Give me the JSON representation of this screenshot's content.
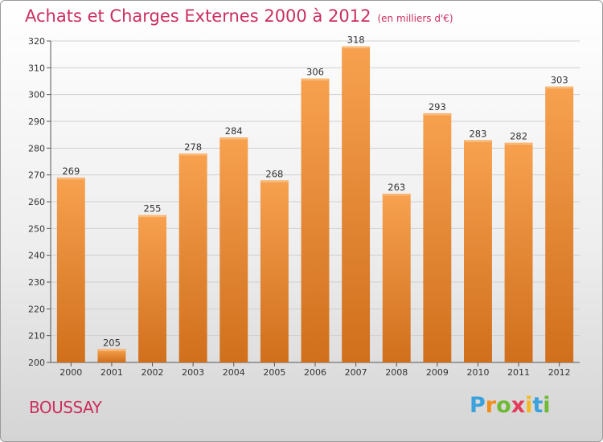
{
  "header": {
    "title": "Achats et Charges Externes 2000 à 2012",
    "subtitle": "(en milliers d'€)"
  },
  "footer": {
    "commune": "BOUSSAY",
    "logo_letters": [
      "P",
      "r",
      "o",
      "x",
      "i",
      "t",
      "i"
    ]
  },
  "colors": {
    "bar_top": "#f7a14f",
    "bar_bottom": "#d06f1c",
    "title": "#cc2e5e",
    "grid": "#cfcfcf"
  },
  "chart_data": {
    "type": "bar",
    "title": "Achats et Charges Externes 2000 à 2012",
    "subtitle": "(en milliers d'€)",
    "categories": [
      "2000",
      "2001",
      "2002",
      "2003",
      "2004",
      "2005",
      "2006",
      "2007",
      "2008",
      "2009",
      "2010",
      "2011",
      "2012"
    ],
    "values": [
      269,
      205,
      255,
      278,
      284,
      268,
      306,
      318,
      263,
      293,
      283,
      282,
      303
    ],
    "ylim": [
      200,
      320
    ],
    "yticks": [
      200,
      210,
      220,
      230,
      240,
      250,
      260,
      270,
      280,
      290,
      300,
      310,
      320
    ],
    "grid": true,
    "xlabel": "",
    "ylabel": ""
  }
}
